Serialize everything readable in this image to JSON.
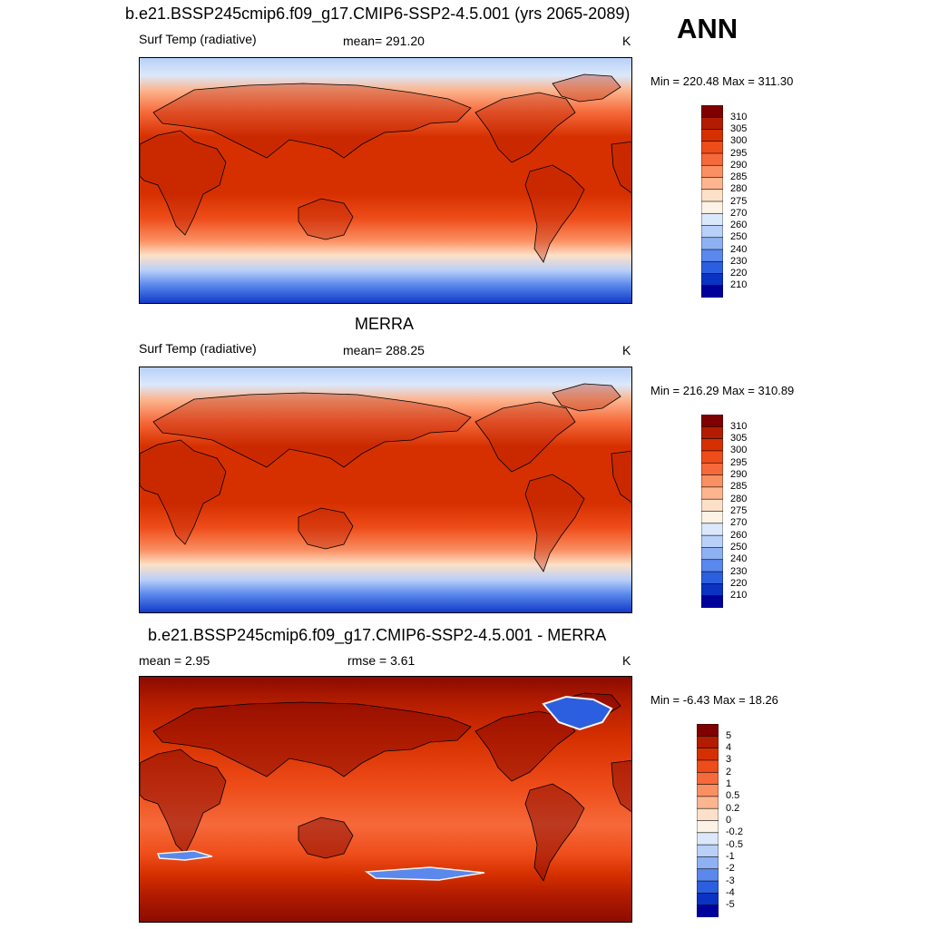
{
  "header": {
    "season": "ANN"
  },
  "panels": [
    {
      "title": "b.e21.BSSP245cmip6.f09_g17.CMIP6-SSP2-4.5.001 (yrs 2065-2089)",
      "left_label": "Surf Temp (radiative)",
      "center_label": "mean= 291.20",
      "units": "K",
      "minmax": "Min = 220.48 Max = 311.30",
      "map_description": "Surface temperature (K), global map"
    },
    {
      "title": "MERRA",
      "left_label": "Surf Temp (radiative)",
      "center_label": "mean= 288.25",
      "units": "K",
      "minmax": "Min = 216.29 Max = 310.89",
      "map_description": "Surface temperature (K), global map"
    },
    {
      "title": "b.e21.BSSP245cmip6.f09_g17.CMIP6-SSP2-4.5.001 - MERRA",
      "left_label": "mean =   2.95",
      "center_label": "rmse =   3.61",
      "units": "K",
      "minmax": "Min =  -6.43 Max =  18.26",
      "map_description": "Difference map (K)"
    }
  ],
  "chart_data": [
    {
      "type": "heatmap",
      "title": "b.e21.BSSP245cmip6.f09_g17.CMIP6-SSP2-4.5.001 (yrs 2065-2089)",
      "variable": "Surf Temp (radiative)",
      "units": "K",
      "mean": 291.2,
      "min": 220.48,
      "max": 311.3,
      "colorbar_levels": [
        "310",
        "305",
        "300",
        "295",
        "290",
        "285",
        "280",
        "275",
        "270",
        "260",
        "250",
        "240",
        "230",
        "220",
        "210"
      ],
      "colorbar_colors": [
        "#7f0000",
        "#b31c00",
        "#d63000",
        "#ee4d1a",
        "#f6693a",
        "#fa8f62",
        "#fcb58f",
        "#fde0c8",
        "#fdf2e6",
        "#dbe8fb",
        "#b9d0f8",
        "#8eb1f3",
        "#5a88ec",
        "#2c5fe0",
        "#0a33c4",
        "#00009a"
      ]
    },
    {
      "type": "heatmap",
      "title": "MERRA",
      "variable": "Surf Temp (radiative)",
      "units": "K",
      "mean": 288.25,
      "min": 216.29,
      "max": 310.89,
      "colorbar_levels": [
        "310",
        "305",
        "300",
        "295",
        "290",
        "285",
        "280",
        "275",
        "270",
        "260",
        "250",
        "240",
        "230",
        "220",
        "210"
      ],
      "colorbar_colors": [
        "#7f0000",
        "#b31c00",
        "#d63000",
        "#ee4d1a",
        "#f6693a",
        "#fa8f62",
        "#fcb58f",
        "#fde0c8",
        "#fdf2e6",
        "#dbe8fb",
        "#b9d0f8",
        "#8eb1f3",
        "#5a88ec",
        "#2c5fe0",
        "#0a33c4",
        "#00009a"
      ]
    },
    {
      "type": "heatmap",
      "title": "b.e21.BSSP245cmip6.f09_g17.CMIP6-SSP2-4.5.001 - MERRA",
      "variable": "difference",
      "units": "K",
      "mean": 2.95,
      "rmse": 3.61,
      "min": -6.43,
      "max": 18.26,
      "colorbar_levels": [
        "5",
        "4",
        "3",
        "2",
        "1",
        "0.5",
        "0.2",
        "0",
        "-0.2",
        "-0.5",
        "-1",
        "-2",
        "-3",
        "-4",
        "-5"
      ],
      "colorbar_colors": [
        "#7f0000",
        "#b31c00",
        "#d63000",
        "#ee4d1a",
        "#f6693a",
        "#fa8f62",
        "#fcb58f",
        "#fde0c8",
        "#fdf2e6",
        "#dbe8fb",
        "#b9d0f8",
        "#8eb1f3",
        "#5a88ec",
        "#2c5fe0",
        "#0a33c4",
        "#00009a"
      ]
    }
  ]
}
